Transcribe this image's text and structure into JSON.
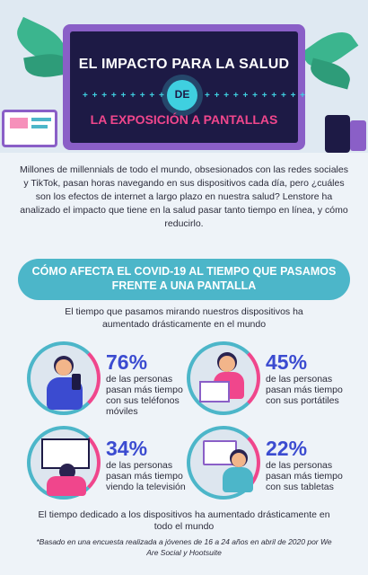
{
  "header": {
    "title": "EL IMPACTO PARA LA SALUD",
    "de": "DE",
    "subtitle": "LA EXPOSICIÓN A PANTALLAS",
    "dots_left": "+ + + + + + + + + + +",
    "dots_right": "+ + + + + + + + + + +"
  },
  "intro": "Millones de millennials de todo el mundo, obsesionados con las redes sociales y TikTok, pasan horas navegando en sus dispositivos cada día, pero ¿cuáles son los efectos de internet a largo plazo en nuestra salud? Lenstore ha analizado el impacto que tiene en la salud pasar tanto tiempo en línea, y cómo reducirlo.",
  "section": {
    "banner": "CÓMO AFECTA EL COVID-19 AL TIEMPO QUE PASAMOS FRENTE A UNA PANTALLA",
    "lead": "El tiempo que pasamos mirando nuestros dispositivos ha aumentado drásticamente en el mundo"
  },
  "stats": [
    {
      "percent": "76%",
      "text": "de las personas pasan más tiempo con sus teléfonos móviles",
      "icon": "phone-user-icon"
    },
    {
      "percent": "45%",
      "text": "de las personas pasan más tiempo con sus portátiles",
      "icon": "laptop-user-icon"
    },
    {
      "percent": "34%",
      "text": "de las personas pasan más tiempo viendo la televisión",
      "icon": "tv-user-icon"
    },
    {
      "percent": "22%",
      "text": "de las personas pasan más tiempo con sus tabletas",
      "icon": "tablet-user-icon"
    }
  ],
  "footer": {
    "summary": "El tiempo dedicado a los dispositivos ha aumentado drásticamente en todo el mundo",
    "note": "*Basado en una encuesta realizada a jóvenes de 16 a 24 años en abril de 2020 por We Are Social y Hootsuite"
  },
  "colors": {
    "accent_pink": "#f0468c",
    "accent_cyan": "#3fd0e0",
    "accent_teal": "#4cb6c9",
    "accent_blue": "#3b4bd0",
    "screen_dark": "#1d1a45",
    "monitor_purple": "#8a5fc7"
  }
}
